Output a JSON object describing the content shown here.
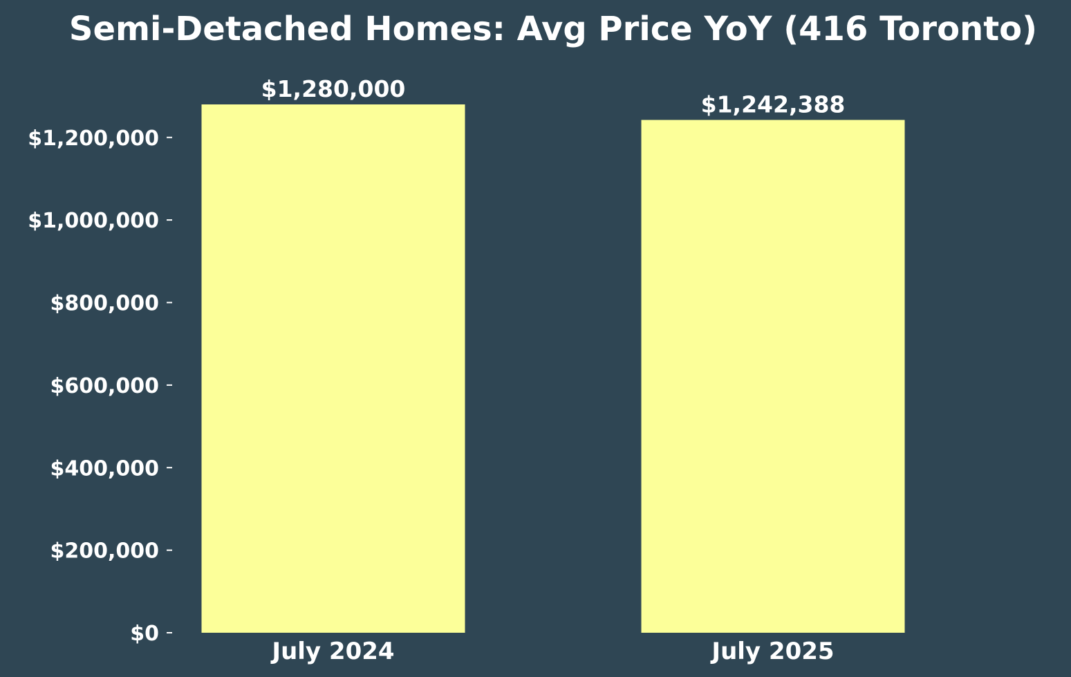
{
  "chart_data": {
    "type": "bar",
    "title": "Semi-Detached Homes: Avg Price YoY (416 Toronto)",
    "xlabel": "",
    "ylabel": "",
    "categories": [
      "July 2024",
      "July 2025"
    ],
    "values": [
      1280000,
      1242388
    ],
    "data_labels": [
      "$1,280,000",
      "$1,242,388"
    ],
    "yticks": [
      0,
      200000,
      400000,
      600000,
      800000,
      1000000,
      1200000
    ],
    "ytick_labels": [
      "$0",
      "$200,000",
      "$400,000",
      "$600,000",
      "$800,000",
      "$1,000,000",
      "$1,200,000"
    ],
    "ylim": [
      0,
      1280000
    ],
    "grid": false,
    "legend": "none"
  },
  "colors": {
    "background": "#2f4654",
    "bar": "#fcff99",
    "text": "#ffffff"
  }
}
